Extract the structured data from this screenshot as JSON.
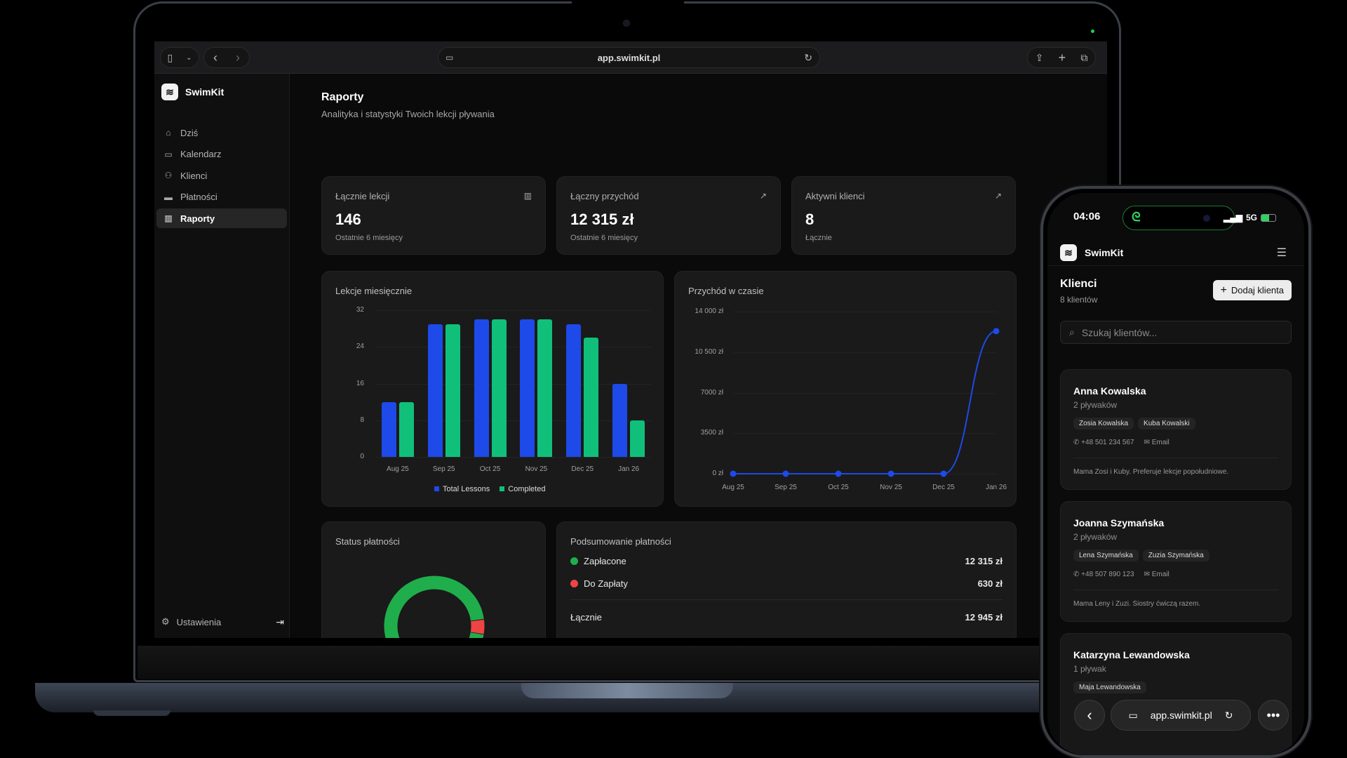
{
  "browser": {
    "url": "app.swimkit.pl",
    "icons": [
      "sidebar-toggle-icon",
      "chevron-down-icon",
      "back-icon",
      "forward-icon",
      "page-icon",
      "reload-icon",
      "share-icon",
      "plus-icon",
      "tabs-icon"
    ]
  },
  "sidebar": {
    "brand": "SwimKit",
    "items": [
      {
        "label": "Dziś",
        "icon": "home-icon",
        "glyph": "⌂"
      },
      {
        "label": "Kalendarz",
        "icon": "calendar-icon",
        "glyph": "▭"
      },
      {
        "label": "Klienci",
        "icon": "users-icon",
        "glyph": "⚇"
      },
      {
        "label": "Płatności",
        "icon": "credit-card-icon",
        "glyph": "▬"
      },
      {
        "label": "Raporty",
        "icon": "bar-chart-icon",
        "glyph": "▥",
        "active": true
      }
    ],
    "settings_label": "Ustawienia"
  },
  "page": {
    "title": "Raporty",
    "subtitle": "Analityka i statystyki Twoich lekcji pływania"
  },
  "stats": [
    {
      "label": "Łącznie lekcji",
      "value": "146",
      "sub": "Ostatnie 6 miesięcy",
      "icon": "bar-chart-icon"
    },
    {
      "label": "Łączny przychód",
      "value": "12 315 zł",
      "sub": "Ostatnie 6 miesięcy",
      "icon": "trending-up-icon"
    },
    {
      "label": "Aktywni klienci",
      "value": "8",
      "sub": "Łącznie",
      "icon": "trending-up-icon"
    }
  ],
  "charts": {
    "lessons_title": "Lekcje miesięcznie",
    "revenue_title": "Przychód w czasie",
    "status_title": "Status płatności",
    "summary_title": "Podsumowanie płatności"
  },
  "chart_data": [
    {
      "type": "bar",
      "title": "Lekcje miesięcznie",
      "categories": [
        "Aug 25",
        "Sep 25",
        "Oct 25",
        "Nov 25",
        "Dec 25",
        "Jan 26"
      ],
      "series": [
        {
          "name": "Total Lessons",
          "color": "#1d4ae8",
          "values": [
            12,
            29,
            30,
            30,
            29,
            16
          ]
        },
        {
          "name": "Completed",
          "color": "#10c07a",
          "values": [
            12,
            29,
            30,
            30,
            26,
            8
          ]
        }
      ],
      "yticks": [
        "0",
        "8",
        "16",
        "24",
        "32"
      ],
      "ylim": [
        0,
        32
      ],
      "legend_position": "bottom",
      "grid": true
    },
    {
      "type": "line",
      "title": "Przychód w czasie",
      "x": [
        "Aug 25",
        "Sep 25",
        "Oct 25",
        "Nov 25",
        "Dec 25",
        "Jan 26"
      ],
      "series": [
        {
          "name": "Przychód",
          "color": "#1d4ae8",
          "values": [
            0,
            0,
            0,
            0,
            0,
            12315
          ]
        }
      ],
      "yticks": [
        "0 zł",
        "3500 zł",
        "7000 zł",
        "10 500 zł",
        "14 000 zł"
      ],
      "ylim": [
        0,
        14000
      ],
      "grid": true
    },
    {
      "type": "pie",
      "title": "Status płatności",
      "categories": [
        "Zapłacone",
        "Do Zapłaty"
      ],
      "values": [
        12315,
        630
      ],
      "colors": [
        "#1fae4b",
        "#ef4444"
      ],
      "donut": true
    }
  ],
  "summary": {
    "rows": [
      {
        "label": "Zapłacone",
        "amount": "12 315 zł",
        "color": "#1fae4b"
      },
      {
        "label": "Do Zapłaty",
        "amount": "630 zł",
        "color": "#ef4444"
      }
    ],
    "total_label": "Łącznie",
    "total_amount": "12 945 zł"
  },
  "phone": {
    "time": "04:06",
    "network": "5G",
    "brand": "SwimKit",
    "title": "Klienci",
    "count": "8 klientów",
    "add_button": "Dodaj klienta",
    "search_placeholder": "Szukaj klientów...",
    "url": "app.swimkit.pl",
    "clients": [
      {
        "name": "Anna Kowalska",
        "swimmers": "2 pływaków",
        "tags": [
          "Zosia Kowalska",
          "Kuba Kowalski"
        ],
        "phone": "+48 501 234 567",
        "email": "Email",
        "note": "Mama Zosi i Kuby. Preferuje lekcje popołudniowe."
      },
      {
        "name": "Joanna Szymańska",
        "swimmers": "2 pływaków",
        "tags": [
          "Lena Szymańska",
          "Zuzia Szymańska"
        ],
        "phone": "+48 507 890 123",
        "email": "Email",
        "note": "Mama Leny i Zuzi. Siostry ćwiczą razem."
      },
      {
        "name": "Katarzyna Lewandowska",
        "swimmers": "1 pływak",
        "tags": [
          "Maja Lewandowska"
        ]
      }
    ]
  }
}
